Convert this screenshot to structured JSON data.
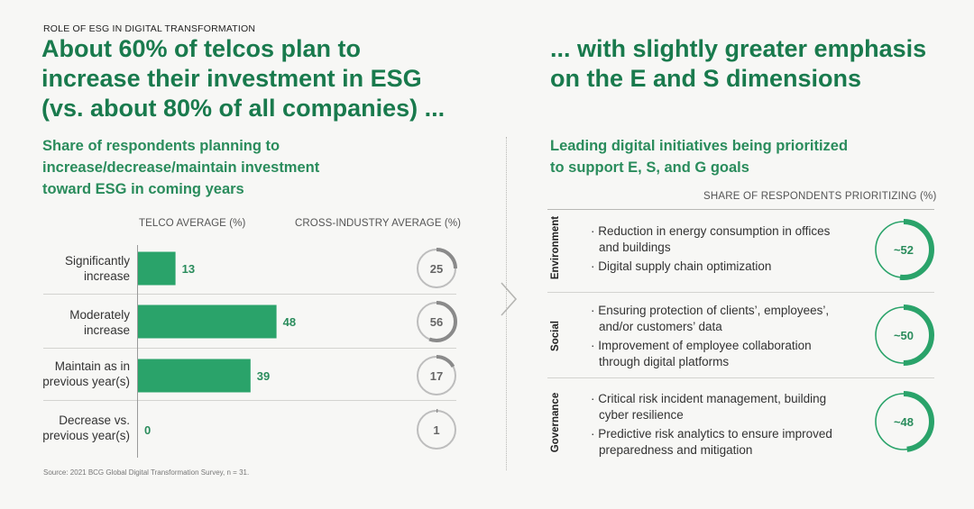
{
  "left": {
    "kicker": "ROLE OF ESG IN DIGITAL TRANSFORMATION",
    "headline_lines": [
      "About 60% of telcos plan to",
      "increase their investment in ESG",
      "(vs. about 80% of all companies) ..."
    ],
    "subtitle_lines": [
      "Share of respondents planning to",
      "increase/decrease/maintain investment",
      "toward ESG in coming years"
    ],
    "col_telco": "TELCO AVERAGE (%)",
    "col_cross": "CROSS-INDUSTRY AVERAGE (%)"
  },
  "right": {
    "headline_lines": [
      "... with slightly greater emphasis",
      "on the E and S dimensions"
    ],
    "subtitle_lines": [
      "Leading digital initiatives being prioritized",
      "to support E, S, and G goals"
    ],
    "share_head": "SHARE OF RESPONDENTS PRIORITIZING (%)",
    "dimensions": [
      {
        "name": "Environment",
        "bullets": [
          "Reduction in energy consumption in offices and buildings",
          "Digital supply chain optimization"
        ]
      },
      {
        "name": "Social",
        "bullets": [
          "Ensuring protection of clients’, employees’, and/or customers’ data",
          "Improvement of employee collaboration through digital platforms"
        ]
      },
      {
        "name": "Governance",
        "bullets": [
          "Critical risk incident management, building cyber resilience",
          "Predictive risk analytics to ensure improved preparedness and mitigation"
        ]
      }
    ]
  },
  "source": "Source: 2021 BCG Global Digital Transformation Survey, n = 31.",
  "colors": {
    "accent": "#2aa36a",
    "headline": "#197a4d",
    "ring_track": "#bdbdbd",
    "ring_dark": "#8a8a8a"
  },
  "chart_data": [
    {
      "type": "bar",
      "orientation": "horizontal",
      "categories": [
        "Significantly increase",
        "Moderately increase",
        "Maintain as in previous year(s)",
        "Decrease vs. previous year(s)"
      ],
      "series": [
        {
          "name": "TELCO AVERAGE (%)",
          "values": [
            13,
            48,
            39,
            0
          ]
        },
        {
          "name": "CROSS-INDUSTRY AVERAGE (%)",
          "values": [
            25,
            56,
            17,
            1
          ]
        }
      ],
      "xlim": [
        0,
        100
      ]
    },
    {
      "type": "pie",
      "categories": [
        "Environment",
        "Social",
        "Governance"
      ],
      "values": [
        52,
        50,
        48
      ],
      "labels": [
        "~52",
        "~50",
        "~48"
      ]
    }
  ]
}
